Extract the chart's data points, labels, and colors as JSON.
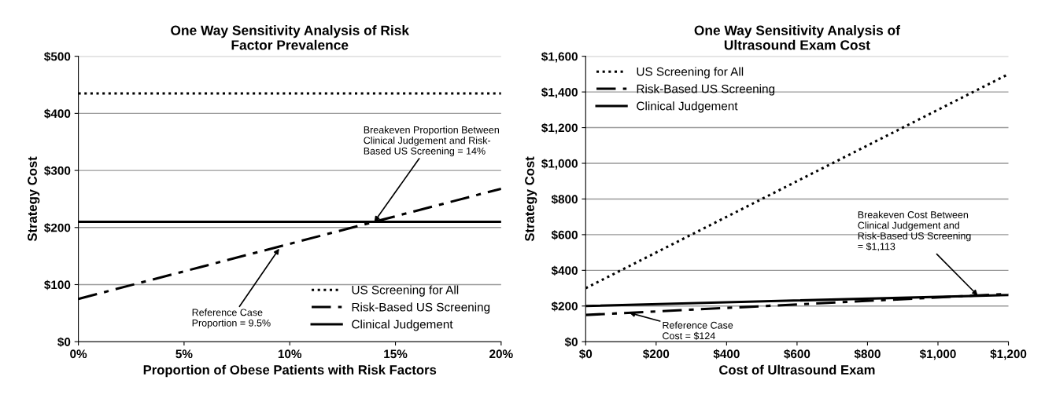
{
  "chart_data": [
    {
      "type": "line",
      "title": "One Way Sensitivity Analysis of Risk\nFactor Prevalence",
      "xlabel": "Proportion of Obese Patients with Risk Factors",
      "ylabel": "Strategy Cost",
      "xlim": [
        0,
        20
      ],
      "xticks": [
        {
          "value": 0,
          "label": "0%"
        },
        {
          "value": 5,
          "label": "5%"
        },
        {
          "value": 10,
          "label": "10%"
        },
        {
          "value": 15,
          "label": "15%"
        },
        {
          "value": 20,
          "label": "20%"
        }
      ],
      "ylim": [
        0,
        500
      ],
      "yticks": [
        {
          "value": 0,
          "label": "$0"
        },
        {
          "value": 100,
          "label": "$100"
        },
        {
          "value": 200,
          "label": "$200"
        },
        {
          "value": 300,
          "label": "$300"
        },
        {
          "value": 400,
          "label": "$400"
        },
        {
          "value": 500,
          "label": "$500"
        }
      ],
      "grid": "y",
      "legend": "bottom right",
      "marker": "none",
      "series": [
        {
          "name": "US Screening for All",
          "color": "#000000",
          "line_style": "dotted",
          "x": [
            0,
            20
          ],
          "values": [
            435,
            435
          ]
        },
        {
          "name": "Risk-Based US Screening",
          "color": "#000000",
          "line_style": "dashdot",
          "x": [
            0,
            20
          ],
          "values": [
            75,
            268
          ]
        },
        {
          "name": "Clinical Judgement",
          "color": "#000000",
          "line_style": "solid",
          "x": [
            0,
            20
          ],
          "values": [
            210,
            210
          ]
        }
      ],
      "annotations": [
        {
          "text": "Breakeven Proportion Between\nClinical Judgement and Risk-\nBased US Screening = 14%",
          "x": 14,
          "y": 210
        },
        {
          "text": "Reference Case\nProportion = 9.5%",
          "x": 9.5,
          "y": 163
        }
      ]
    },
    {
      "type": "line",
      "title": "One Way Sensitivity Analysis of\nUltrasound Exam Cost",
      "xlabel": "Cost of Ultrasound Exam",
      "ylabel": "Strategy Cost",
      "xlim": [
        0,
        1200
      ],
      "xticks": [
        {
          "value": 0,
          "label": "$0"
        },
        {
          "value": 200,
          "label": "$200"
        },
        {
          "value": 400,
          "label": "$400"
        },
        {
          "value": 600,
          "label": "$600"
        },
        {
          "value": 800,
          "label": "$800"
        },
        {
          "value": 1000,
          "label": "$1,000"
        },
        {
          "value": 1200,
          "label": "$1,200"
        }
      ],
      "ylim": [
        0,
        1600
      ],
      "yticks": [
        {
          "value": 0,
          "label": "$0"
        },
        {
          "value": 200,
          "label": "$200"
        },
        {
          "value": 400,
          "label": "$400"
        },
        {
          "value": 600,
          "label": "$600"
        },
        {
          "value": 800,
          "label": "$800"
        },
        {
          "value": 1000,
          "label": "$1,000"
        },
        {
          "value": 1200,
          "label": "$1,200"
        },
        {
          "value": 1400,
          "label": "$1,400"
        },
        {
          "value": 1600,
          "label": "$1,600"
        }
      ],
      "grid": "y",
      "legend": "top left",
      "marker": "none",
      "series": [
        {
          "name": "US Screening for All",
          "color": "#000000",
          "line_style": "dotted",
          "x": [
            0,
            1200
          ],
          "values": [
            300,
            1500
          ]
        },
        {
          "name": "Risk-Based US Screening",
          "color": "#000000",
          "line_style": "dashdot",
          "x": [
            0,
            1200
          ],
          "values": [
            150,
            268
          ]
        },
        {
          "name": "Clinical Judgement",
          "color": "#000000",
          "line_style": "solid",
          "x": [
            0,
            1200
          ],
          "values": [
            200,
            262
          ]
        }
      ],
      "annotations": [
        {
          "text": "Breakeven Cost Between\nClinical Judgement and\nRisk-Based US Screening\n= $1,113",
          "x": 1113,
          "y": 259
        },
        {
          "text": "Reference Case\nCost = $124",
          "x": 124,
          "y": 162
        }
      ]
    }
  ]
}
